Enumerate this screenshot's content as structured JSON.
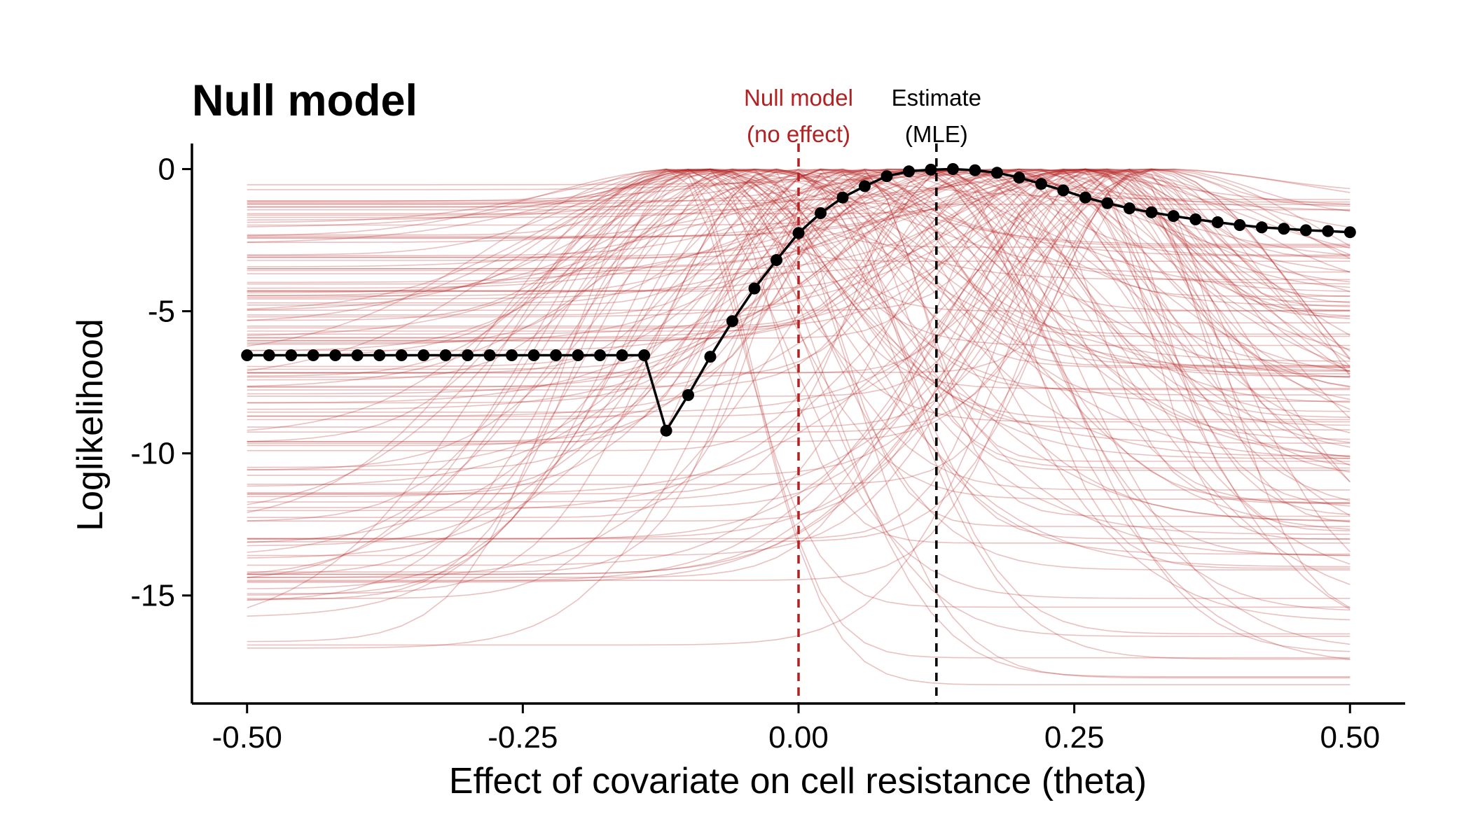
{
  "chart_data": {
    "type": "line",
    "title": "Null model",
    "xlabel": "Effect of covariate on cell resistance (theta)",
    "ylabel": "Loglikelihood",
    "xlim": [
      -0.55,
      0.55
    ],
    "ylim": [
      -18.8,
      0.9
    ],
    "x_ticks": [
      "-0.50",
      "-0.25",
      "0.00",
      "0.25",
      "0.50"
    ],
    "y_ticks": [
      "0",
      "-5",
      "-10",
      "-15"
    ],
    "grid": false,
    "colors": {
      "main": "#000000",
      "null": "#b22222",
      "estimate": "#000000",
      "replicate": "#b22222"
    },
    "annotations": [
      {
        "x": 0.0,
        "lines": [
          "Null model",
          "(no effect)"
        ],
        "color": "#b22222",
        "linestyle": "dashed"
      },
      {
        "x": 0.125,
        "lines": [
          "Estimate",
          "(MLE)"
        ],
        "color": "#000000",
        "linestyle": "dashed"
      }
    ],
    "series": [
      {
        "x": [
          -0.5,
          -0.48,
          -0.46,
          -0.44,
          -0.42,
          -0.4,
          -0.38,
          -0.36,
          -0.34,
          -0.32,
          -0.3,
          -0.28,
          -0.26,
          -0.24,
          -0.22,
          -0.2,
          -0.18,
          -0.16,
          -0.14,
          -0.12,
          -0.1,
          -0.08,
          -0.06,
          -0.04,
          -0.02,
          0.0,
          0.02,
          0.04,
          0.06,
          0.08,
          0.1,
          0.12,
          0.14,
          0.16,
          0.18,
          0.2,
          0.22,
          0.24,
          0.26,
          0.28,
          0.3,
          0.32,
          0.34,
          0.36,
          0.38,
          0.4,
          0.42,
          0.44,
          0.46,
          0.48,
          0.5
        ],
        "y": [
          -6.55,
          -6.55,
          -6.55,
          -6.55,
          -6.55,
          -6.55,
          -6.55,
          -6.55,
          -6.55,
          -6.55,
          -6.55,
          -6.55,
          -6.55,
          -6.55,
          -6.55,
          -6.55,
          -6.55,
          -6.55,
          -6.55,
          -9.2,
          -7.95,
          -6.6,
          -5.35,
          -4.2,
          -3.2,
          -2.25,
          -1.55,
          -1.0,
          -0.6,
          -0.25,
          -0.08,
          -0.02,
          0.0,
          -0.04,
          -0.13,
          -0.3,
          -0.52,
          -0.75,
          -1.0,
          -1.2,
          -1.38,
          -1.52,
          -1.65,
          -1.77,
          -1.87,
          -1.97,
          -2.05,
          -2.1,
          -2.15,
          -2.18,
          -2.22
        ]
      }
    ],
    "replicates": {
      "count": 150,
      "theta_range": [
        -0.5,
        0.5
      ],
      "peak_range": [
        -0.12,
        0.34
      ],
      "left_floor_range": [
        -17.0,
        -0.5
      ],
      "right_floor_range": [
        -18.2,
        -0.8
      ]
    }
  }
}
